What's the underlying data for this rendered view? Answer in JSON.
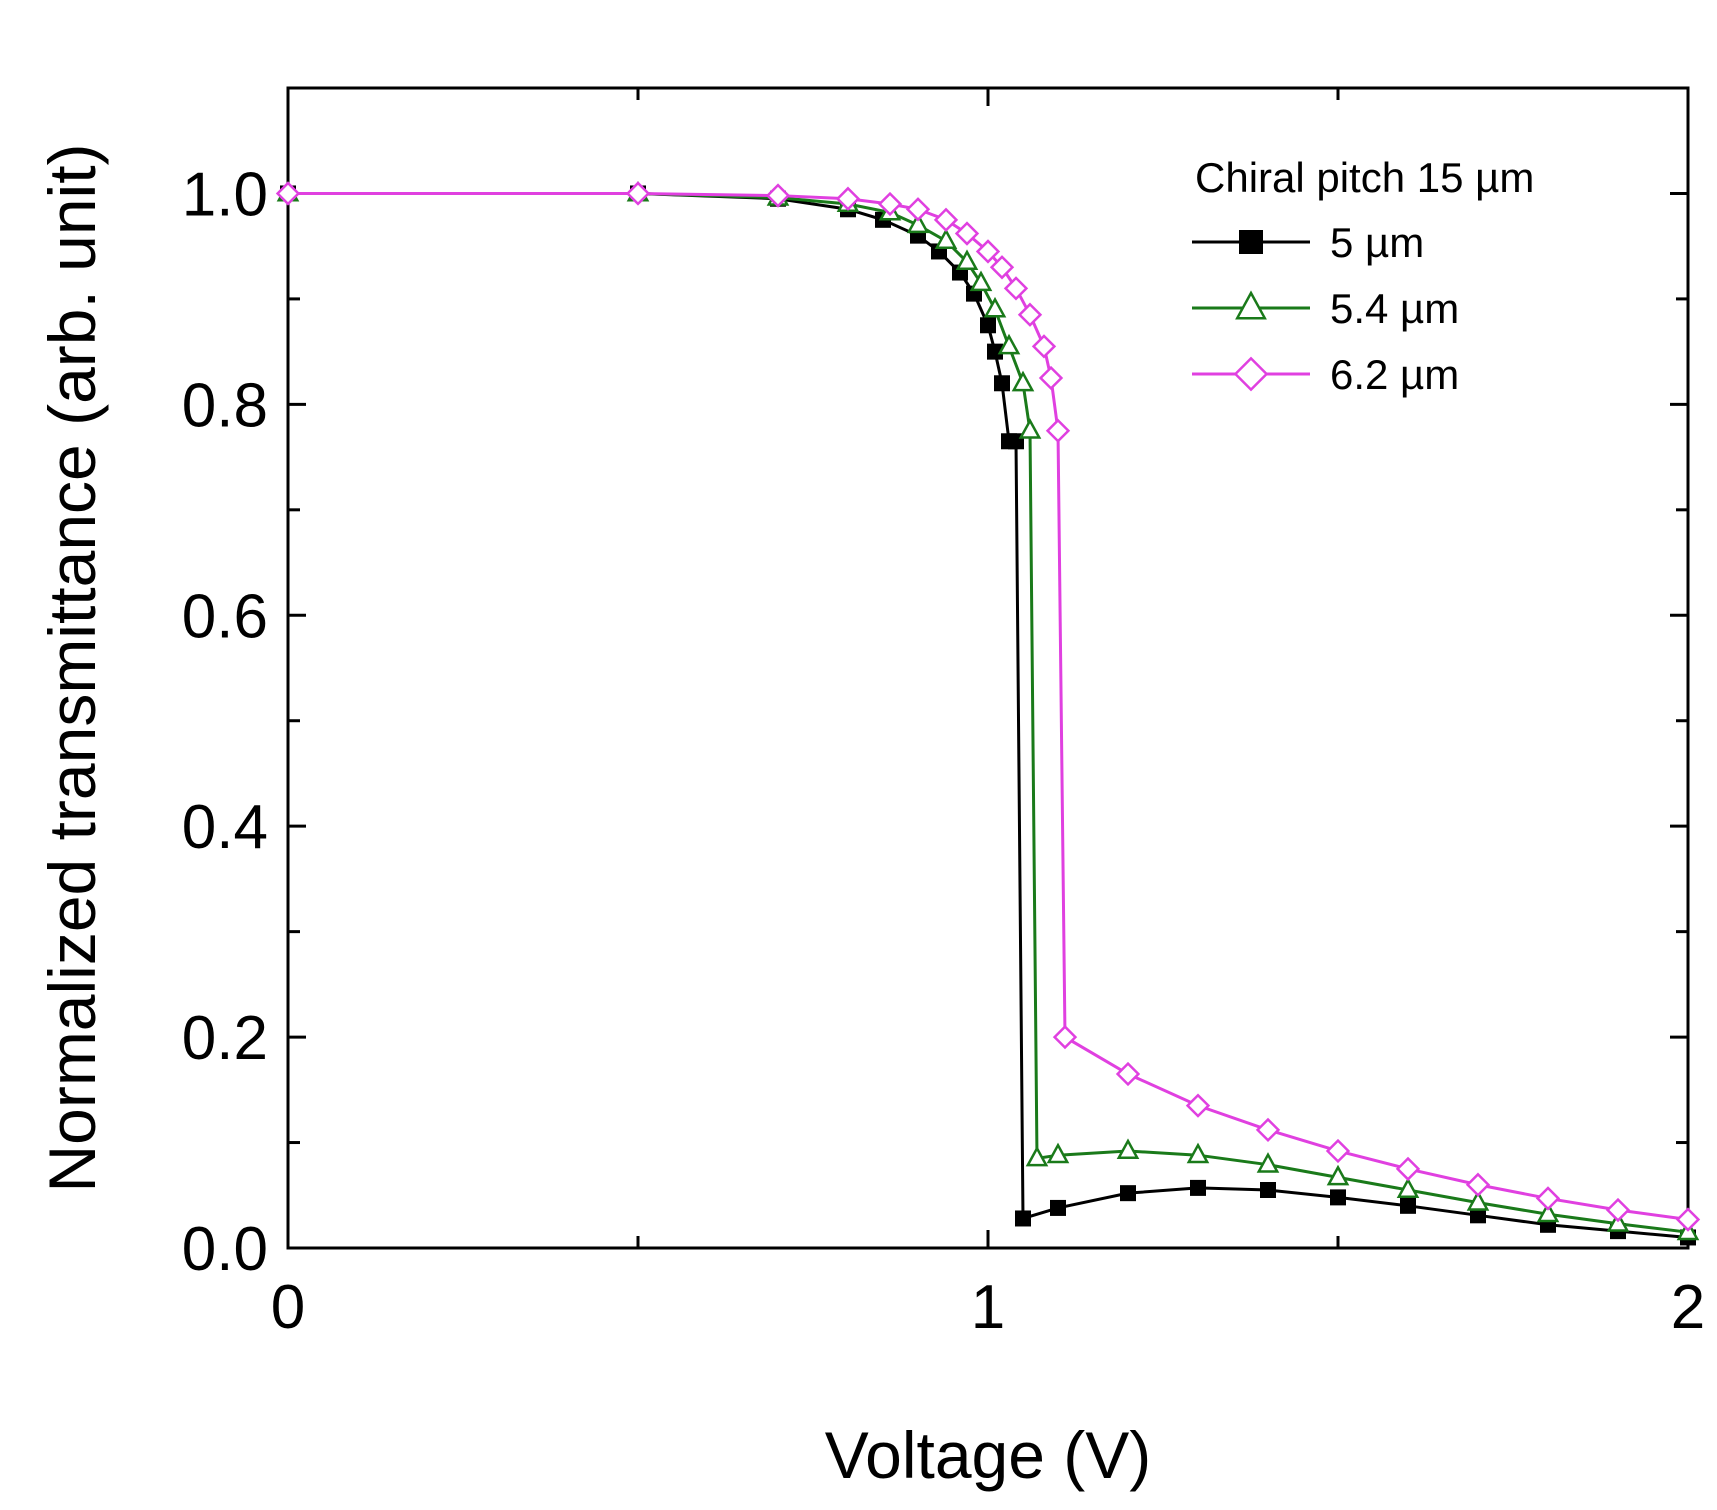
{
  "chart_data": {
    "type": "line",
    "title": "",
    "xlabel": "Voltage (V)",
    "ylabel": "Normalized transmittance (arb. unit)",
    "xlim": [
      0,
      2
    ],
    "ylim": [
      0,
      1.1
    ],
    "x_ticks": [
      0,
      0.5,
      1,
      1.5,
      2
    ],
    "x_tick_labels": [
      "0",
      "",
      "1",
      "",
      "2"
    ],
    "y_ticks": [
      0.0,
      0.1,
      0.2,
      0.3,
      0.4,
      0.5,
      0.6,
      0.7,
      0.8,
      0.9,
      1.0
    ],
    "y_tick_labels": [
      "0.0",
      "",
      "0.2",
      "",
      "0.4",
      "",
      "0.6",
      "",
      "0.8",
      "",
      "1.0"
    ],
    "legend": {
      "title": "Chiral pitch 15 µm",
      "position": "top-right"
    },
    "series": [
      {
        "name": "5 µm",
        "color": "#000000",
        "marker": "square-filled",
        "x": [
          0,
          0.5,
          0.7,
          0.8,
          0.85,
          0.9,
          0.93,
          0.96,
          0.98,
          1.0,
          1.01,
          1.02,
          1.03,
          1.04,
          1.05,
          1.1,
          1.2,
          1.3,
          1.4,
          1.5,
          1.6,
          1.7,
          1.8,
          1.9,
          2.0
        ],
        "values": [
          1.0,
          1.0,
          0.995,
          0.985,
          0.975,
          0.96,
          0.945,
          0.925,
          0.905,
          0.875,
          0.85,
          0.82,
          0.765,
          0.765,
          0.028,
          0.038,
          0.052,
          0.057,
          0.055,
          0.048,
          0.04,
          0.031,
          0.022,
          0.016,
          0.01
        ]
      },
      {
        "name": "5.4 µm",
        "color": "#1a7a1a",
        "marker": "triangle-open",
        "x": [
          0,
          0.5,
          0.7,
          0.8,
          0.86,
          0.9,
          0.94,
          0.97,
          0.99,
          1.01,
          1.03,
          1.05,
          1.06,
          1.07,
          1.1,
          1.2,
          1.3,
          1.4,
          1.5,
          1.6,
          1.7,
          1.8,
          1.9,
          2.0
        ],
        "values": [
          1.0,
          1.0,
          0.996,
          0.99,
          0.982,
          0.97,
          0.955,
          0.935,
          0.915,
          0.89,
          0.855,
          0.82,
          0.775,
          0.085,
          0.088,
          0.092,
          0.088,
          0.079,
          0.067,
          0.055,
          0.043,
          0.032,
          0.023,
          0.015
        ]
      },
      {
        "name": "6.2 µm",
        "color": "#e040e0",
        "marker": "diamond-open",
        "x": [
          0,
          0.5,
          0.7,
          0.8,
          0.86,
          0.9,
          0.94,
          0.97,
          1.0,
          1.02,
          1.04,
          1.06,
          1.08,
          1.09,
          1.1,
          1.11,
          1.2,
          1.3,
          1.4,
          1.5,
          1.6,
          1.7,
          1.8,
          1.9,
          2.0
        ],
        "values": [
          1.0,
          1.0,
          0.998,
          0.995,
          0.99,
          0.985,
          0.975,
          0.962,
          0.945,
          0.93,
          0.91,
          0.885,
          0.855,
          0.825,
          0.775,
          0.2,
          0.165,
          0.135,
          0.112,
          0.092,
          0.075,
          0.06,
          0.047,
          0.036,
          0.027
        ]
      }
    ]
  }
}
